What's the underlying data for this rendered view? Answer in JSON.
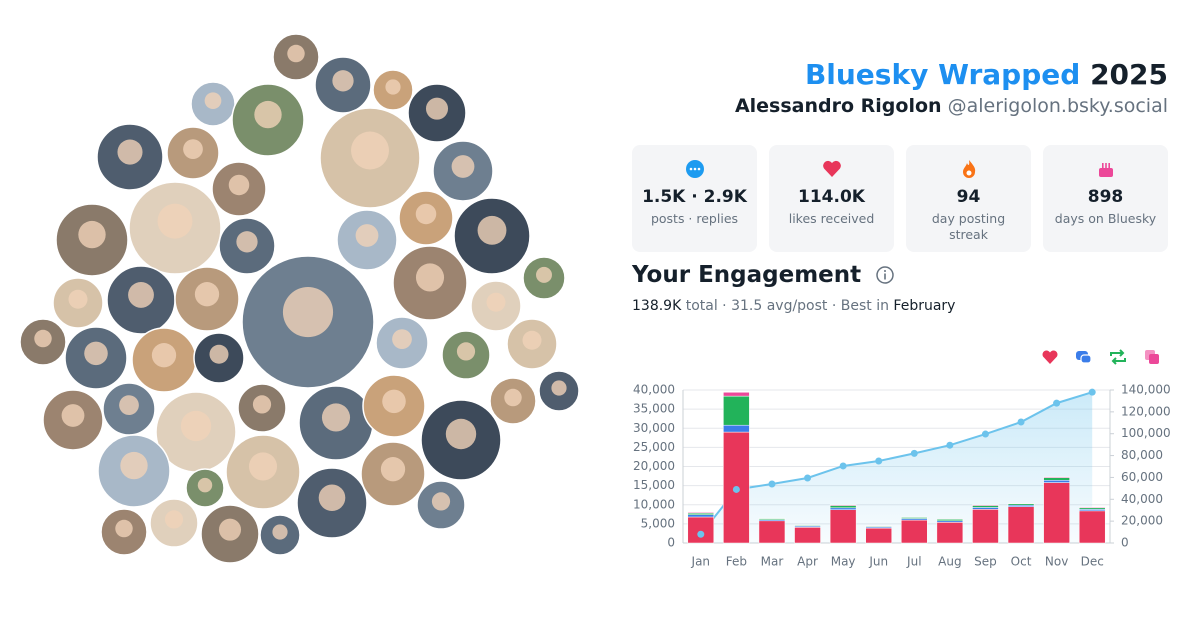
{
  "header": {
    "title": "Bluesky Wrapped",
    "year": "2025",
    "name": "Alessandro Rigolon",
    "handle": "@alerigolon.bsky.social"
  },
  "stats": [
    {
      "value": "1.5K · 2.9K",
      "label": "posts · replies"
    },
    {
      "value": "114.0K",
      "label": "likes received"
    },
    {
      "value": "94",
      "label": "day posting streak"
    },
    {
      "value": "898",
      "label": "days on Bluesky"
    }
  ],
  "engagement": {
    "title": "Your Engagement",
    "summary": [
      "138.9K",
      " total · 31.5 avg/post · Best in ",
      "February"
    ]
  },
  "chart_data": {
    "type": "bar",
    "stacked": true,
    "grid": true,
    "categories": [
      "Jan",
      "Feb",
      "Mar",
      "Apr",
      "May",
      "Jun",
      "Jul",
      "Aug",
      "Sep",
      "Oct",
      "Nov",
      "Dec"
    ],
    "series": [
      {
        "color": "#e8365a",
        "values": [
          6800,
          29000,
          5800,
          4100,
          8700,
          3900,
          6000,
          5400,
          8800,
          9500,
          15800,
          8400
        ]
      },
      {
        "color": "#3b7de9",
        "values": [
          600,
          1800,
          300,
          300,
          500,
          300,
          400,
          400,
          500,
          400,
          600,
          400
        ]
      },
      {
        "color": "#22b35a",
        "values": [
          400,
          7600,
          300,
          200,
          600,
          200,
          300,
          400,
          500,
          400,
          700,
          400
        ]
      },
      {
        "color": "#ec4899",
        "values": [
          200,
          1000,
          100,
          100,
          200,
          100,
          100,
          100,
          200,
          100,
          200,
          200
        ]
      },
      {
        "type": "line",
        "axis": "y2",
        "color": "#6cc3ec",
        "values": [
          8000,
          49000,
          54000,
          59500,
          70500,
          75000,
          82000,
          89500,
          99700,
          110700,
          128000,
          138000
        ]
      }
    ],
    "ylim": [
      0,
      40000
    ],
    "yticks": [
      0,
      {
        "value": 5000,
        "label": "5,000"
      },
      {
        "value": 10000,
        "label": "10,000"
      },
      {
        "value": 15000,
        "label": "15,000"
      },
      {
        "value": 20000,
        "label": "20,000"
      },
      {
        "value": 25000,
        "label": "25,000"
      },
      {
        "value": 30000,
        "label": "30,000"
      },
      {
        "value": 35000,
        "label": "35,000"
      },
      {
        "value": 40000,
        "label": "40,000"
      }
    ],
    "y2lim": [
      0,
      140000
    ],
    "y2ticks": [
      0,
      {
        "value": 20000,
        "label": "20,000"
      },
      {
        "value": 40000,
        "label": "40,000"
      },
      {
        "value": 60000,
        "label": "60,000"
      },
      {
        "value": 80000,
        "label": "80,000"
      },
      {
        "value": 100000,
        "label": "100,000"
      },
      {
        "value": 120000,
        "label": "120,000"
      },
      {
        "value": 140000,
        "label": "140,000"
      }
    ]
  }
}
